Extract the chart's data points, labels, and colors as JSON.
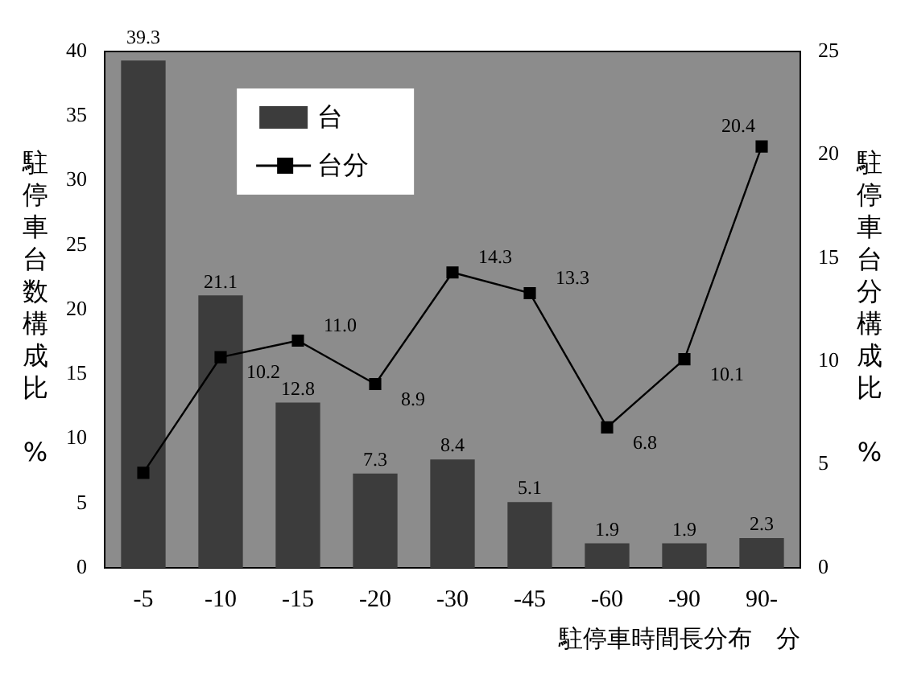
{
  "chart_data": {
    "type": "bar",
    "xlabel": "駐停車時間長分布　分",
    "ylabel": "駐停車台数構成比　%",
    "y2label": "駐停車台分構成比　%",
    "categories": [
      "-5",
      "-10",
      "-15",
      "-20",
      "-30",
      "-45",
      "-60",
      "-90",
      "90-"
    ],
    "series": [
      {
        "name": "台",
        "type": "bar",
        "color": "#3c3c3c",
        "values": [
          39.3,
          21.1,
          12.8,
          7.3,
          8.4,
          5.1,
          1.9,
          1.9,
          2.3
        ],
        "value_labels": [
          "39.3",
          "21.1",
          "12.8",
          "7.3",
          "8.4",
          "5.1",
          "1.9",
          "1.9",
          "2.3"
        ]
      },
      {
        "name": "台分",
        "type": "line",
        "axis": "y2",
        "color": "#000000",
        "marker": "square",
        "values": [
          4.6,
          10.2,
          11.0,
          8.9,
          14.3,
          13.3,
          6.8,
          10.1,
          20.4
        ],
        "value_labels": [
          null,
          "10.2",
          "11.0",
          "8.9",
          "14.3",
          "13.3",
          "6.8",
          "10.1",
          "20.4"
        ]
      }
    ],
    "ylim": [
      0,
      40
    ],
    "yticks": [
      0,
      5,
      10,
      15,
      20,
      25,
      30,
      35,
      40
    ],
    "y2lim": [
      0,
      25
    ],
    "y2ticks": [
      0,
      5,
      10,
      15,
      20,
      25
    ],
    "grid": false,
    "legend": "top left"
  }
}
